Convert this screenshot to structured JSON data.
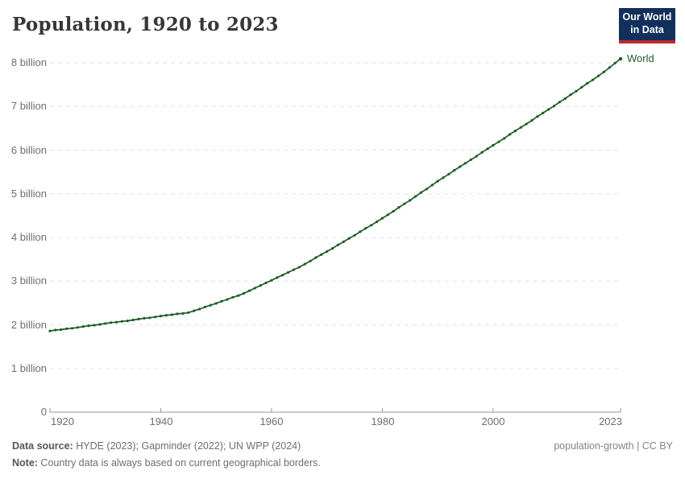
{
  "header": {
    "title": "Population, 1920 to 2023"
  },
  "logo": {
    "line1": "Our World",
    "line2": "in Data"
  },
  "colors": {
    "line_green": "#1e5c26",
    "gridline": "#e3e3e3",
    "axis": "#9a9a9a",
    "logo_navy": "#12305b",
    "logo_red": "#c0272d"
  },
  "chart_data": {
    "type": "line",
    "title": "Population, 1920 to 2023",
    "xlabel": "",
    "ylabel": "",
    "unit": "billion",
    "x_start": 1920,
    "x_end": 2023,
    "ylim": [
      0,
      8.2
    ],
    "grid": "horizontal dashed",
    "legend": "inline label at end of line",
    "y_ticks": [
      0,
      1,
      2,
      3,
      4,
      5,
      6,
      7,
      8
    ],
    "y_tick_labels": [
      "0",
      "1 billion",
      "2 billion",
      "3 billion",
      "4 billion",
      "5 billion",
      "6 billion",
      "7 billion",
      "8 billion"
    ],
    "x_tick_years": [
      1920,
      1940,
      1960,
      1980,
      2000,
      2023
    ],
    "x_tick_labels": [
      "1920",
      "1940",
      "1960",
      "1980",
      "2000",
      "2023"
    ],
    "series": [
      {
        "name": "World",
        "color": "#1e5c26",
        "year_start": 1920,
        "values_billion": [
          1.86,
          1.88,
          1.89,
          1.91,
          1.92,
          1.94,
          1.96,
          1.98,
          1.99,
          2.01,
          2.03,
          2.05,
          2.06,
          2.08,
          2.09,
          2.11,
          2.13,
          2.15,
          2.16,
          2.18,
          2.2,
          2.22,
          2.23,
          2.25,
          2.26,
          2.28,
          2.32,
          2.36,
          2.41,
          2.45,
          2.49,
          2.54,
          2.58,
          2.63,
          2.67,
          2.72,
          2.78,
          2.84,
          2.9,
          2.96,
          3.02,
          3.08,
          3.14,
          3.2,
          3.26,
          3.32,
          3.39,
          3.46,
          3.54,
          3.61,
          3.68,
          3.75,
          3.83,
          3.9,
          3.98,
          4.05,
          4.13,
          4.21,
          4.28,
          4.36,
          4.44,
          4.52,
          4.6,
          4.69,
          4.77,
          4.85,
          4.94,
          5.03,
          5.11,
          5.2,
          5.29,
          5.37,
          5.45,
          5.54,
          5.62,
          5.7,
          5.78,
          5.86,
          5.95,
          6.03,
          6.11,
          6.19,
          6.27,
          6.36,
          6.44,
          6.52,
          6.6,
          6.68,
          6.77,
          6.85,
          6.93,
          7.01,
          7.1,
          7.18,
          7.27,
          7.35,
          7.44,
          7.53,
          7.61,
          7.7,
          7.79,
          7.89,
          7.99,
          8.09
        ]
      }
    ]
  },
  "annotations": {
    "world_label": "World"
  },
  "footer": {
    "source_label": "Data source:",
    "source_text": " HYDE (2023); Gapminder (2022); UN WPP (2024)",
    "note_label": "Note:",
    "note_text": " Country data is always based on current geographical borders.",
    "right_text": "population-growth | CC BY"
  }
}
